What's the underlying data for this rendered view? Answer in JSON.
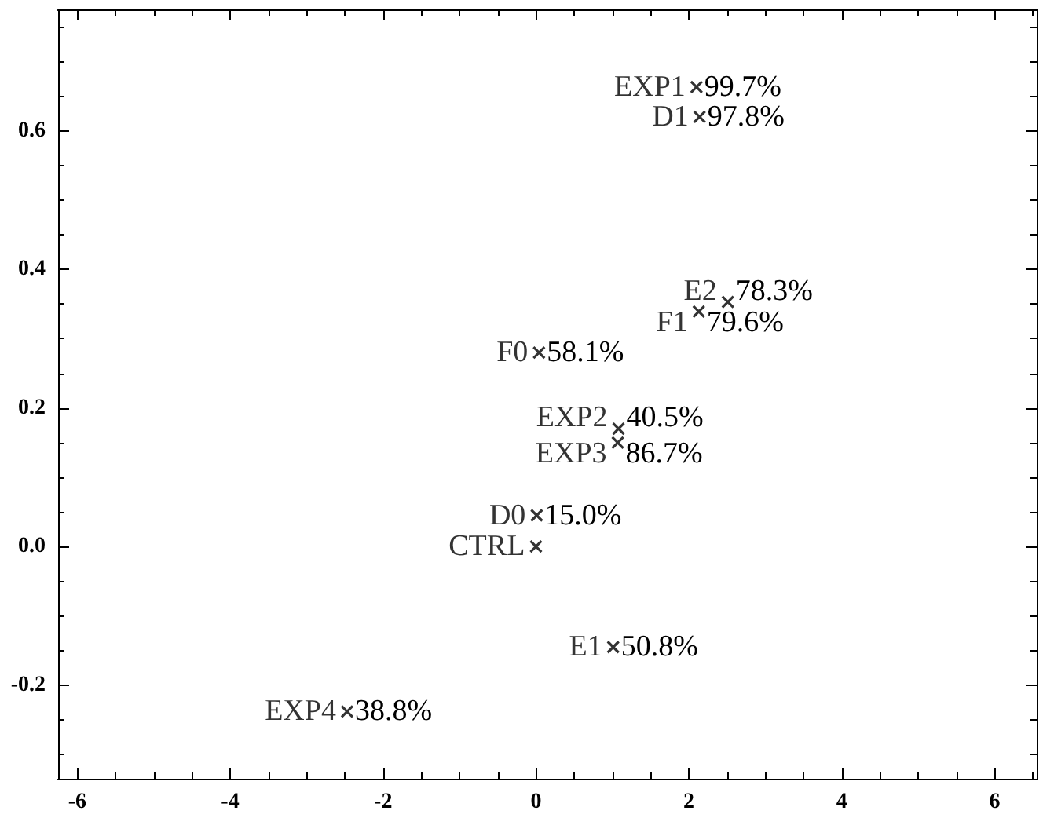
{
  "chart_data": {
    "type": "scatter",
    "xlim": [
      -6.25,
      6.55
    ],
    "ylim": [
      -0.335,
      0.775
    ],
    "xticks": [
      -6,
      -4,
      -2,
      0,
      2,
      4,
      6
    ],
    "yticks": [
      {
        "value": -0.2,
        "label": "-0.2"
      },
      {
        "value": 0,
        "label": "0.0"
      },
      {
        "value": 0.2,
        "label": "0.2"
      },
      {
        "value": 0.4,
        "label": "0.4"
      },
      {
        "value": 0.6,
        "label": "0.6"
      }
    ],
    "marker": "cross",
    "series": [
      {
        "name": "EXP1",
        "color": "#000000",
        "x": [
          2.1
        ],
        "values": [
          0.663
        ]
      },
      {
        "name": "D1",
        "color": "#000000",
        "x": [
          2.14
        ],
        "values": [
          0.62
        ]
      },
      {
        "name": "E2",
        "color": "#000000",
        "x": [
          2.51
        ],
        "values": [
          0.353
        ]
      },
      {
        "name": "F1",
        "color": "#000000",
        "x": [
          2.13
        ],
        "values": [
          0.339
        ]
      },
      {
        "name": "F0",
        "color": "#000000",
        "x": [
          0.04
        ],
        "values": [
          0.28
        ]
      },
      {
        "name": "EXP2",
        "color": "#000000",
        "x": [
          1.08
        ],
        "values": [
          0.17
        ]
      },
      {
        "name": "EXP3",
        "color": "#000000",
        "x": [
          1.07
        ],
        "values": [
          0.15
        ]
      },
      {
        "name": "D0",
        "color": "#000000",
        "x": [
          0.01
        ],
        "values": [
          0.045
        ]
      },
      {
        "name": "CTRL",
        "color": "#000000",
        "x": [
          0.0
        ],
        "values": [
          0.0
        ]
      },
      {
        "name": "E1",
        "color": "#000000",
        "x": [
          1.01
        ],
        "values": [
          -0.145
        ]
      },
      {
        "name": "EXP4",
        "color": "#000000",
        "x": [
          -2.47
        ],
        "values": [
          -0.238
        ]
      }
    ],
    "annotations": [
      {
        "text": "99.7%",
        "x": 2.1,
        "y": 0.663
      },
      {
        "text": "97.8%",
        "x": 2.14,
        "y": 0.62
      },
      {
        "text": "78.3%",
        "x": 2.51,
        "y": 0.353
      },
      {
        "text": "79.6%",
        "x": 2.13,
        "y": 0.339
      },
      {
        "text": "58.1%",
        "x": 0.04,
        "y": 0.28
      },
      {
        "text": "40.5%",
        "x": 1.08,
        "y": 0.17
      },
      {
        "text": "86.7%",
        "x": 1.07,
        "y": 0.15
      },
      {
        "text": "15.0%",
        "x": 0.01,
        "y": 0.045
      },
      {
        "text": "50.8%",
        "x": 1.01,
        "y": -0.145
      },
      {
        "text": "38.8%",
        "x": -2.47,
        "y": -0.238
      }
    ]
  }
}
